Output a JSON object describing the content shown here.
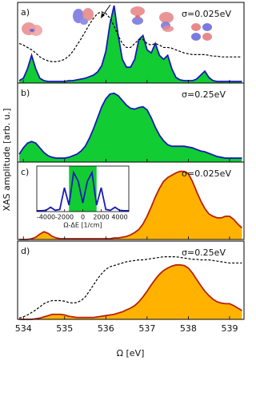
{
  "shared": {
    "xlabel": "Ω [eV]",
    "ylabel": "XAS amplitude [arb. u.]"
  },
  "chart_data": [
    {
      "type": "line",
      "panel_label": "a)",
      "annotation": "σ=0.025eV",
      "xlim": [
        533.86,
        539.35
      ],
      "ylim": [
        0,
        1.02
      ],
      "xticks": [
        534,
        535,
        536,
        537,
        538,
        539
      ],
      "x": [
        533.9,
        534,
        534.1,
        534.2,
        534.3,
        534.4,
        534.5,
        534.6,
        534.7,
        534.8,
        534.9,
        535,
        535.1,
        535.2,
        535.3,
        535.4,
        535.5,
        535.6,
        535.7,
        535.8,
        535.9,
        536,
        536.1,
        536.2,
        536.3,
        536.4,
        536.5,
        536.6,
        536.7,
        536.8,
        536.9,
        537,
        537.1,
        537.2,
        537.3,
        537.4,
        537.5,
        537.6,
        537.7,
        537.8,
        537.9,
        538,
        538.1,
        538.2,
        538.3,
        538.4,
        538.5,
        538.6,
        538.7,
        538.8,
        538.9,
        539,
        539.1,
        539.2,
        539.3
      ],
      "series": [
        {
          "color": "#1a1ab8",
          "fill": "#11cc33",
          "values": [
            0.03,
            0.06,
            0.18,
            0.35,
            0.18,
            0.06,
            0.03,
            0.02,
            0.02,
            0.02,
            0.02,
            0.02,
            0.03,
            0.03,
            0.04,
            0.05,
            0.06,
            0.08,
            0.1,
            0.14,
            0.22,
            0.4,
            0.75,
            0.98,
            0.6,
            0.3,
            0.2,
            0.2,
            0.3,
            0.55,
            0.6,
            0.42,
            0.38,
            0.5,
            0.35,
            0.3,
            0.35,
            0.18,
            0.07,
            0.04,
            0.03,
            0.03,
            0.03,
            0.05,
            0.1,
            0.15,
            0.07,
            0.03,
            0.02,
            0.02,
            0.02,
            0.02,
            0.02,
            0.02,
            0.02
          ]
        },
        {
          "color": "#000000",
          "dashed": true,
          "values": [
            0.5,
            0.48,
            0.45,
            0.42,
            0.38,
            0.33,
            0.3,
            0.28,
            0.27,
            0.27,
            0.28,
            0.3,
            0.34,
            0.4,
            0.48,
            0.56,
            0.65,
            0.74,
            0.82,
            0.88,
            0.9,
            0.88,
            0.82,
            0.72,
            0.6,
            0.5,
            0.45,
            0.45,
            0.5,
            0.55,
            0.55,
            0.5,
            0.48,
            0.5,
            0.48,
            0.45,
            0.45,
            0.44,
            0.42,
            0.4,
            0.38,
            0.37,
            0.36,
            0.36,
            0.36,
            0.36,
            0.35,
            0.34,
            0.34,
            0.33,
            0.33,
            0.33,
            0.33,
            0.33,
            0.33
          ]
        }
      ]
    },
    {
      "type": "line",
      "panel_label": "b)",
      "annotation": "σ=0.25eV",
      "xlim": [
        533.86,
        539.35
      ],
      "ylim": [
        0,
        1
      ],
      "xticks": [
        534,
        535,
        536,
        537,
        538,
        539
      ],
      "x": [
        533.9,
        534,
        534.1,
        534.2,
        534.3,
        534.4,
        534.5,
        534.6,
        534.7,
        534.8,
        534.9,
        535,
        535.1,
        535.2,
        535.3,
        535.4,
        535.5,
        535.6,
        535.7,
        535.8,
        535.9,
        536,
        536.1,
        536.2,
        536.3,
        536.4,
        536.5,
        536.6,
        536.7,
        536.8,
        536.9,
        537,
        537.1,
        537.2,
        537.3,
        537.4,
        537.5,
        537.6,
        537.7,
        537.8,
        537.9,
        538,
        538.1,
        538.2,
        538.3,
        538.4,
        538.5,
        538.6,
        538.7,
        538.8,
        538.9,
        539,
        539.1,
        539.2,
        539.3
      ],
      "series": [
        {
          "color": "#1a1ab8",
          "fill": "#11cc33",
          "values": [
            0.1,
            0.18,
            0.24,
            0.26,
            0.24,
            0.18,
            0.12,
            0.08,
            0.06,
            0.05,
            0.05,
            0.05,
            0.06,
            0.08,
            0.1,
            0.14,
            0.2,
            0.3,
            0.42,
            0.56,
            0.7,
            0.8,
            0.86,
            0.87,
            0.84,
            0.78,
            0.72,
            0.68,
            0.67,
            0.69,
            0.7,
            0.66,
            0.56,
            0.44,
            0.34,
            0.27,
            0.22,
            0.2,
            0.2,
            0.2,
            0.2,
            0.19,
            0.18,
            0.16,
            0.14,
            0.13,
            0.11,
            0.09,
            0.07,
            0.06,
            0.05,
            0.05,
            0.05,
            0.05,
            0.05
          ]
        }
      ]
    },
    {
      "type": "line",
      "panel_label": "c)",
      "annotation": "σ=0.025eV",
      "xlim": [
        533.86,
        539.35
      ],
      "ylim": [
        0,
        1
      ],
      "xticks": [
        534,
        535,
        536,
        537,
        538,
        539
      ],
      "x": [
        533.9,
        534,
        534.1,
        534.2,
        534.3,
        534.4,
        534.5,
        534.6,
        534.7,
        534.8,
        534.9,
        535,
        535.1,
        535.2,
        535.3,
        535.4,
        535.5,
        535.6,
        535.7,
        535.8,
        535.9,
        536,
        536.1,
        536.2,
        536.3,
        536.4,
        536.5,
        536.6,
        536.7,
        536.8,
        536.9,
        537,
        537.1,
        537.2,
        537.3,
        537.4,
        537.5,
        537.6,
        537.7,
        537.8,
        537.9,
        538,
        538.1,
        538.2,
        538.3,
        538.4,
        538.5,
        538.6,
        538.7,
        538.8,
        538.9,
        539,
        539.1,
        539.2,
        539.3
      ],
      "series": [
        {
          "color": "#b8200c",
          "fill": "#ffb300",
          "values": [
            0,
            0,
            0,
            0.01,
            0.03,
            0.07,
            0.1,
            0.08,
            0.04,
            0.02,
            0.01,
            0.01,
            0.01,
            0.01,
            0.01,
            0.01,
            0.01,
            0.01,
            0.01,
            0.01,
            0.01,
            0.01,
            0.01,
            0.02,
            0.02,
            0.03,
            0.04,
            0.06,
            0.09,
            0.13,
            0.2,
            0.3,
            0.42,
            0.55,
            0.66,
            0.75,
            0.8,
            0.83,
            0.86,
            0.88,
            0.88,
            0.85,
            0.75,
            0.62,
            0.5,
            0.4,
            0.33,
            0.3,
            0.28,
            0.28,
            0.3,
            0.3,
            0.26,
            0.2,
            0.15
          ]
        }
      ]
    },
    {
      "type": "line",
      "panel_label": "d)",
      "annotation": "σ=0.25eV",
      "xlim": [
        533.86,
        539.35
      ],
      "ylim": [
        0,
        1.25
      ],
      "xticks": [
        534,
        535,
        536,
        537,
        538,
        539
      ],
      "x": [
        533.9,
        534,
        534.1,
        534.2,
        534.3,
        534.4,
        534.5,
        534.6,
        534.7,
        534.8,
        534.9,
        535,
        535.1,
        535.2,
        535.3,
        535.4,
        535.5,
        535.6,
        535.7,
        535.8,
        535.9,
        536,
        536.1,
        536.2,
        536.3,
        536.4,
        536.5,
        536.6,
        536.7,
        536.8,
        536.9,
        537,
        537.1,
        537.2,
        537.3,
        537.4,
        537.5,
        537.6,
        537.7,
        537.8,
        537.9,
        538,
        538.1,
        538.2,
        538.3,
        538.4,
        538.5,
        538.6,
        538.7,
        538.8,
        538.9,
        539,
        539.1,
        539.2,
        539.3
      ],
      "series": [
        {
          "color": "#b8200c",
          "fill": "#ffb300",
          "values": [
            0,
            0,
            0,
            0,
            0.01,
            0.02,
            0.04,
            0.06,
            0.08,
            0.08,
            0.08,
            0.07,
            0.05,
            0.04,
            0.03,
            0.03,
            0.03,
            0.03,
            0.03,
            0.04,
            0.05,
            0.06,
            0.07,
            0.08,
            0.1,
            0.12,
            0.15,
            0.18,
            0.22,
            0.28,
            0.36,
            0.45,
            0.55,
            0.64,
            0.72,
            0.78,
            0.82,
            0.85,
            0.87,
            0.87,
            0.86,
            0.82,
            0.74,
            0.64,
            0.54,
            0.45,
            0.38,
            0.32,
            0.28,
            0.26,
            0.25,
            0.25,
            0.22,
            0.18,
            0.14
          ]
        },
        {
          "color": "#000000",
          "dashed": true,
          "values": [
            0.02,
            0.04,
            0.07,
            0.11,
            0.15,
            0.2,
            0.25,
            0.28,
            0.3,
            0.3,
            0.3,
            0.29,
            0.27,
            0.26,
            0.27,
            0.3,
            0.36,
            0.45,
            0.55,
            0.65,
            0.73,
            0.8,
            0.84,
            0.86,
            0.88,
            0.9,
            0.92,
            0.93,
            0.94,
            0.95,
            0.95,
            0.96,
            0.97,
            0.98,
            0.99,
            1.0,
            1.0,
            1.0,
            1.0,
            0.99,
            0.98,
            0.97,
            0.96,
            0.96,
            0.95,
            0.95,
            0.95,
            0.94,
            0.93,
            0.92,
            0.91,
            0.9,
            0.9,
            0.9,
            0.9
          ]
        }
      ]
    },
    {
      "type": "inset",
      "xlabel": "Ω-ΔE [1/cm]",
      "xlim": [
        -5000,
        5000
      ],
      "ylim": [
        0,
        1.05
      ],
      "xticks": [
        -4000,
        -2000,
        0,
        2000,
        4000
      ],
      "band": [
        -1500,
        1500
      ],
      "band_color": "#11cc33",
      "x": [
        -5000,
        -4500,
        -4000,
        -3500,
        -3000,
        -2500,
        -2000,
        -1500,
        -1000,
        -500,
        0,
        500,
        1000,
        1500,
        2000,
        2500,
        3000,
        3500,
        4000,
        4500,
        5000
      ],
      "series": [
        {
          "color": "#1a1ab8",
          "values": [
            0.02,
            0.02,
            0.03,
            0.1,
            0.03,
            0.05,
            0.55,
            0.15,
            0.9,
            0.7,
            0.2,
            0.7,
            0.9,
            0.15,
            0.55,
            0.05,
            0.03,
            0.1,
            0.03,
            0.02,
            0.02
          ]
        }
      ]
    }
  ]
}
